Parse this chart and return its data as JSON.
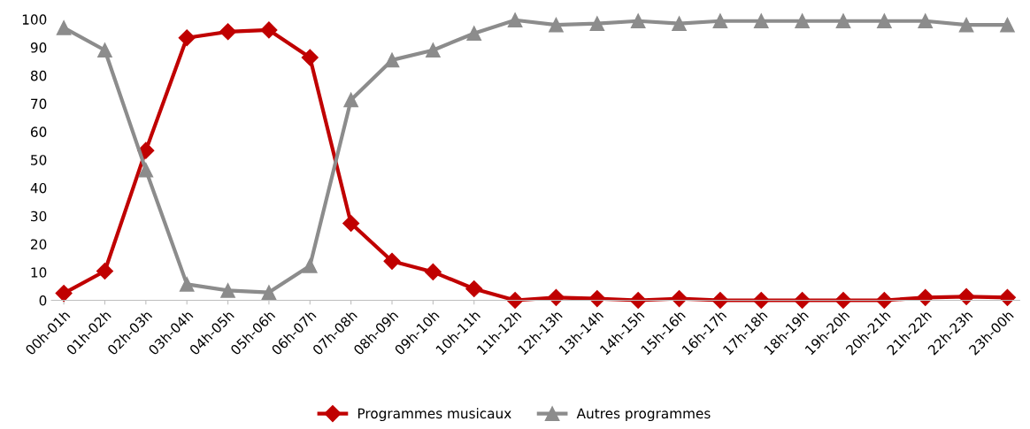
{
  "chart_data": {
    "type": "line",
    "categories": [
      "00h-01h",
      "01h-02h",
      "02h-03h",
      "03h-04h",
      "04h-05h",
      "05h-06h",
      "06h-07h",
      "07h-08h",
      "08h-09h",
      "09h-10h",
      "10h-11h",
      "11h-12h",
      "12h-13h",
      "13h-14h",
      "14h-15h",
      "15h-16h",
      "16h-17h",
      "17h-18h",
      "18h-19h",
      "19h-20h",
      "20h-21h",
      "21h-22h",
      "22h-23h",
      "23h-00h"
    ],
    "series": [
      {
        "name": "Programmes musicaux",
        "color": "#c00000",
        "marker": "diamond",
        "values": [
          2.5,
          10.4,
          53.3,
          93.4,
          95.6,
          96.2,
          86.4,
          27.4,
          13.9,
          10.1,
          4.1,
          0,
          1,
          0.6,
          0,
          0.6,
          0,
          0,
          0,
          0,
          0,
          1,
          1.3,
          1
        ]
      },
      {
        "name": "Autres programmes",
        "color": "#8c8c8c",
        "marker": "triangle",
        "values": [
          97,
          89,
          46.4,
          5.7,
          3.5,
          2.8,
          12.3,
          71.3,
          85.5,
          89,
          95,
          99.7,
          98,
          98.5,
          99.4,
          98.5,
          99.4,
          99.4,
          99.4,
          99.4,
          99.4,
          99.4,
          98,
          98
        ]
      }
    ],
    "ylim": [
      0,
      100
    ],
    "yticks": [
      0,
      10,
      20,
      30,
      40,
      50,
      60,
      70,
      80,
      90,
      100
    ],
    "grid": false,
    "legend": "bottom",
    "line_style": "solid"
  }
}
